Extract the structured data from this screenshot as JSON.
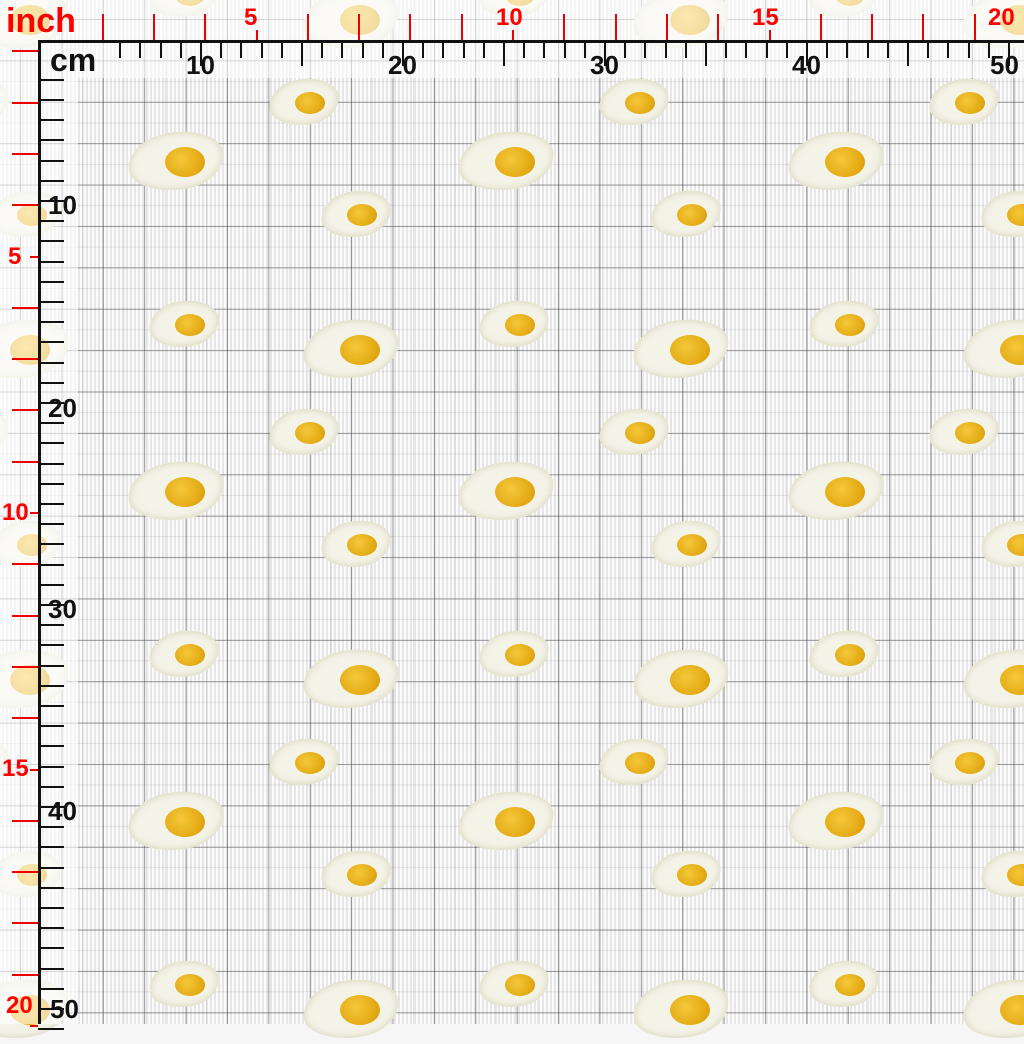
{
  "rulers": {
    "inch_unit": "inch",
    "cm_unit": "cm",
    "top_inch_labels": [
      "5",
      "10",
      "15",
      "20"
    ],
    "top_cm_labels": [
      "10",
      "20",
      "30",
      "40",
      "50"
    ],
    "left_inch_labels": [
      "5",
      "10",
      "15",
      "20"
    ],
    "left_cm_labels": [
      "10",
      "20",
      "30",
      "40",
      "50"
    ],
    "inch_color": "#ff0000",
    "cm_color": "#111111"
  },
  "fabric": {
    "pattern": "fried eggs on white knit with grid",
    "yolk_color": "#e8b01a",
    "white_color": "#f4f3e8"
  }
}
